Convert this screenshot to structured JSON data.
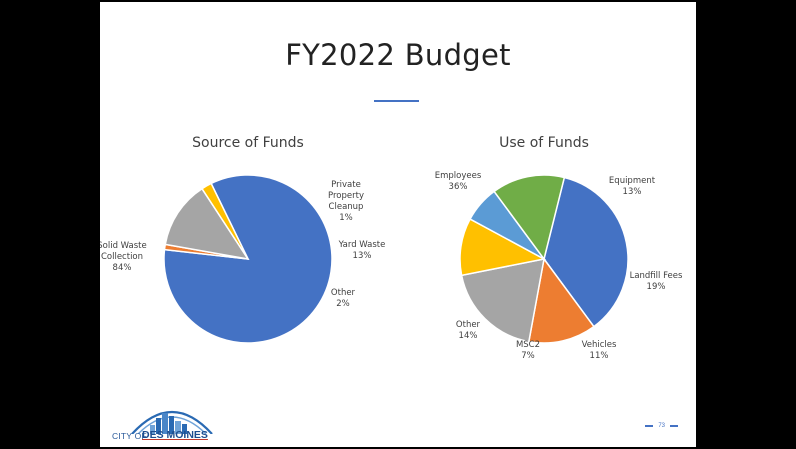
{
  "slide": {
    "title": "FY2022 Budget",
    "page_number": "73"
  },
  "logo": {
    "city": "CITY OF",
    "name": "DES MOINES"
  },
  "colors": {
    "accent": "#4472c4",
    "background": "#000000",
    "slide": "#ffffff"
  },
  "chart_data": [
    {
      "type": "pie",
      "title": "Source of Funds",
      "slices": [
        {
          "label": "Solid Waste Collection",
          "value": 84,
          "pct": "84%",
          "color": "#4472c4"
        },
        {
          "label": "Private Property Cleanup",
          "value": 1,
          "pct": "1%",
          "color": "#ed7d31"
        },
        {
          "label": "Yard Waste",
          "value": 13,
          "pct": "13%",
          "color": "#a5a5a5"
        },
        {
          "label": "Other",
          "value": 2,
          "pct": "2%",
          "color": "#ffc000"
        }
      ]
    },
    {
      "type": "pie",
      "title": "Use of Funds",
      "slices": [
        {
          "label": "Employees",
          "value": 36,
          "pct": "36%",
          "color": "#4472c4"
        },
        {
          "label": "Equipment",
          "value": 13,
          "pct": "13%",
          "color": "#ed7d31"
        },
        {
          "label": "Landfill Fees",
          "value": 19,
          "pct": "19%",
          "color": "#a5a5a5"
        },
        {
          "label": "Vehicles",
          "value": 11,
          "pct": "11%",
          "color": "#ffc000"
        },
        {
          "label": "MSC2",
          "value": 7,
          "pct": "7%",
          "color": "#5b9bd5"
        },
        {
          "label": "Other",
          "value": 14,
          "pct": "14%",
          "color": "#70ad47"
        }
      ]
    }
  ]
}
